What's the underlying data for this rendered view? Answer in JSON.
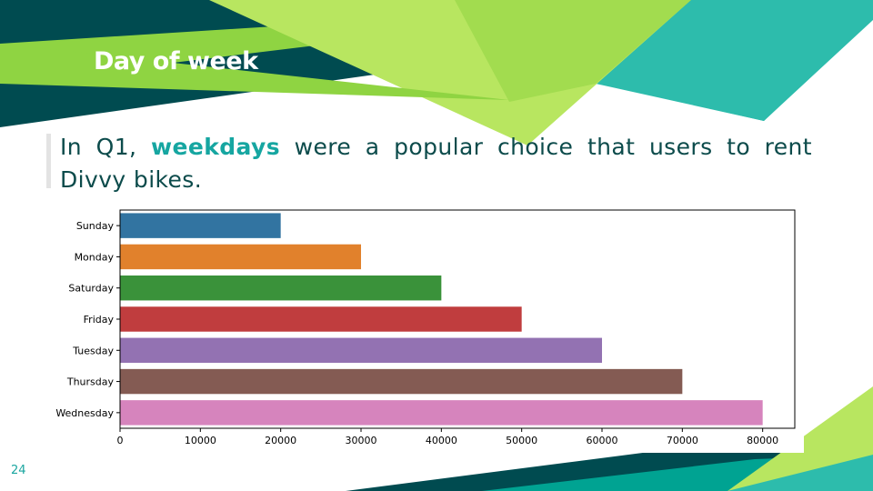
{
  "slide": {
    "title": "Day of week",
    "text_before": "In Q1, ",
    "text_highlight": "weekdays",
    "text_after": " were a popular choice that users to rent Divvy bikes.",
    "page_number": "24",
    "colors": {
      "dark_teal": "#004b50",
      "teal": "#00a392",
      "light_teal": "#2dbcac",
      "lime": "#8fd442",
      "light_lime": "#b8e660",
      "text": "#0c4b4b",
      "highlight": "#16a6a1"
    }
  },
  "chart_data": {
    "type": "bar",
    "orientation": "horizontal",
    "title": "",
    "xlabel": "",
    "ylabel": "",
    "categories": [
      "Sunday",
      "Monday",
      "Saturday",
      "Friday",
      "Tuesday",
      "Thursday",
      "Wednesday"
    ],
    "values": [
      20000,
      30000,
      40000,
      50000,
      60000,
      70000,
      80000
    ],
    "colors": [
      "#3274a1",
      "#e1812c",
      "#3a923a",
      "#c03d3e",
      "#9372b2",
      "#845b53",
      "#d684bd"
    ],
    "xlim": [
      0,
      84000
    ],
    "xticks": [
      0,
      10000,
      20000,
      30000,
      40000,
      50000,
      60000,
      70000,
      80000
    ],
    "grid": false,
    "legend": "none"
  }
}
